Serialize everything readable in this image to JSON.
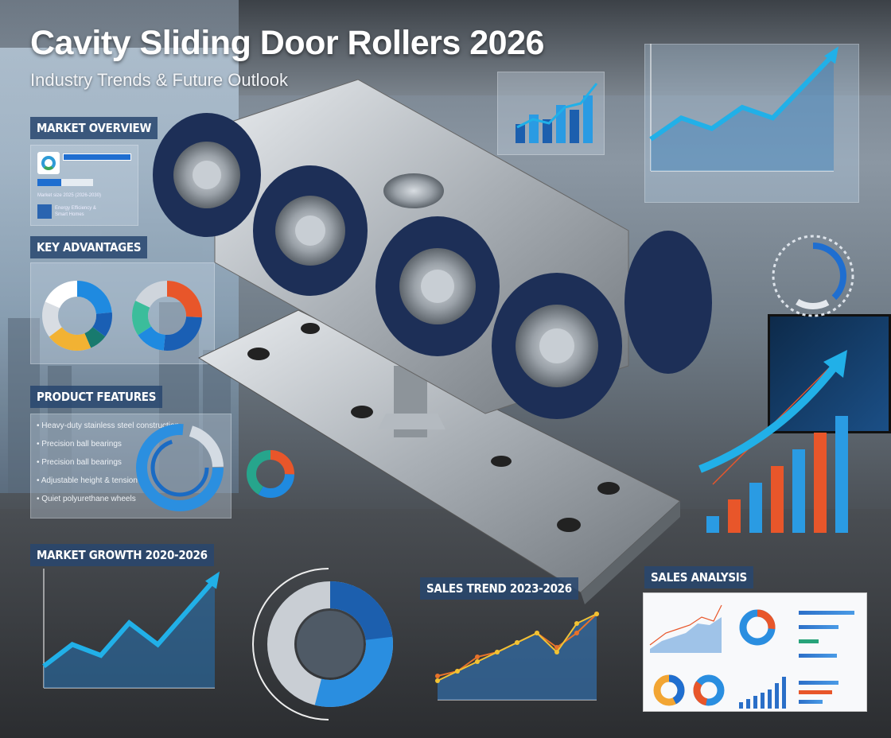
{
  "title": "Cavity Sliding Door Rollers 2026",
  "subtitle": "Industry Trends & Future Outlook",
  "sections": {
    "market_overview": "MARKET OVERVIEW",
    "key_advantages": "KEY ADVANTAGES",
    "product_features": "PRODUCT FEATURES",
    "market_growth": "MARKET GROWTH 2020-2026",
    "sales_trend": "SALES TREND 2023-2026",
    "sales_analysis": "SALES ANALYSIS"
  },
  "features": [
    "Heavy-duty stainless steel construction",
    "Precision ball bearings",
    "Precision ball bearings",
    "Adjustable height & tension",
    "Quiet polyurethane wheels"
  ],
  "overview_text": [
    "Energy Efficiency &",
    "Smart Homes"
  ],
  "colors": {
    "accent": "#1fa3e0",
    "navy": "#1d2f57",
    "orange": "#e8562a",
    "label_bg": "#284670"
  },
  "chart_data": [
    {
      "type": "line",
      "title": "MARKET GROWTH 2020-2026",
      "values": [
        2,
        4,
        3,
        6,
        4,
        7,
        10
      ]
    },
    {
      "type": "line",
      "title": "SALES TREND 2023-2026",
      "series": [
        {
          "values": [
            2,
            3,
            4,
            5,
            6,
            7,
            5,
            8,
            9
          ]
        },
        {
          "values": [
            2.5,
            3,
            4.5,
            5,
            6,
            7,
            5.5,
            7,
            9
          ]
        }
      ]
    },
    {
      "type": "bar",
      "values": [
        1,
        2,
        3,
        4,
        5,
        6,
        7
      ]
    },
    {
      "type": "line",
      "values": [
        3,
        5,
        4,
        6,
        5,
        8,
        11
      ]
    }
  ]
}
